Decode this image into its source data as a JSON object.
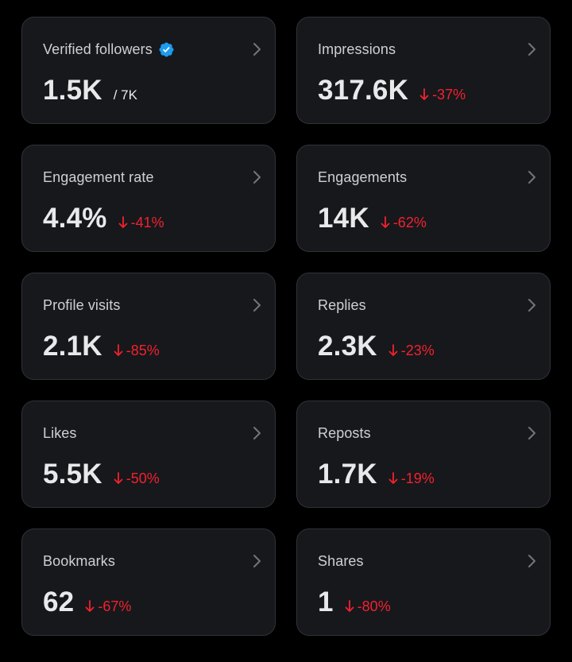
{
  "colors": {
    "background": "#000000",
    "card": "#16181c",
    "card_border": "#2f3336",
    "text": "#e7e9ea",
    "negative": "#f4212e",
    "verified": "#1d9bf0",
    "chevron": "#71767b"
  },
  "cards": [
    {
      "title": "Verified followers",
      "value": "1.5K",
      "denominator": "/ 7K",
      "icon": "verified-badge-icon"
    },
    {
      "title": "Impressions",
      "value": "317.6K",
      "change": "-37%"
    },
    {
      "title": "Engagement rate",
      "value": "4.4%",
      "change": "-41%"
    },
    {
      "title": "Engagements",
      "value": "14K",
      "change": "-62%"
    },
    {
      "title": "Profile visits",
      "value": "2.1K",
      "change": "-85%"
    },
    {
      "title": "Replies",
      "value": "2.3K",
      "change": "-23%"
    },
    {
      "title": "Likes",
      "value": "5.5K",
      "change": "-50%"
    },
    {
      "title": "Reposts",
      "value": "1.7K",
      "change": "-19%"
    },
    {
      "title": "Bookmarks",
      "value": "62",
      "change": "-67%"
    },
    {
      "title": "Shares",
      "value": "1",
      "change": "-80%"
    }
  ]
}
